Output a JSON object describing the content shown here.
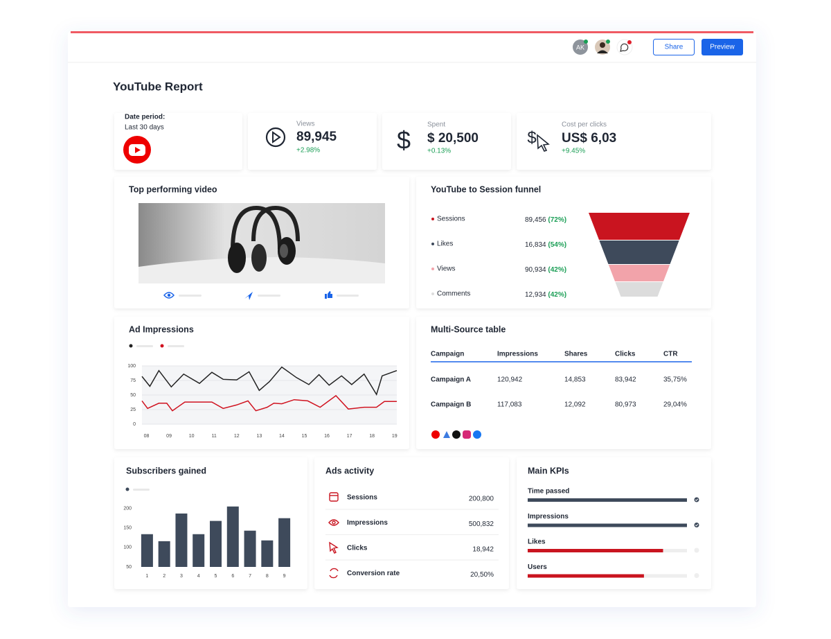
{
  "header": {
    "avatar": "AK",
    "share": "Share",
    "preview": "Preview"
  },
  "title": "YouTube Report",
  "date_period": {
    "label": "Date period:",
    "value": "Last 30 days"
  },
  "kpis": [
    {
      "label": "Views",
      "value": "89,945",
      "change": "+2.98%"
    },
    {
      "label": "Spent",
      "value": "$ 20,500",
      "change": "+0.13%"
    },
    {
      "label": "Cost per clicks",
      "value": "US$ 6,03",
      "change": "+9.45%"
    }
  ],
  "top_video": {
    "title": "Top performing video"
  },
  "funnel": {
    "title": "YouTube to Session funnel",
    "rows": [
      {
        "name": "Sessions",
        "value": "89,456",
        "pct": "(72%)",
        "color": "#c9141f"
      },
      {
        "name": "Likes",
        "value": "16,834",
        "pct": "(54%)",
        "color": "#3e4a5b"
      },
      {
        "name": "Views",
        "value": "90,934",
        "pct": "(42%)",
        "color": "#f2a3aa"
      },
      {
        "name": "Comments",
        "value": "12,934",
        "pct": "(42%)",
        "color": "#dcdcdc"
      }
    ]
  },
  "ad_impressions": {
    "type": "line",
    "title": "Ad Impressions",
    "xlim": [
      7.8,
      19.1
    ],
    "xticks": [
      {
        "value": 8,
        "label": "08"
      },
      {
        "value": 9,
        "label": "09"
      },
      10,
      11,
      12,
      13,
      14,
      15,
      16,
      17,
      18,
      19
    ],
    "ylim": [
      0,
      100
    ],
    "yticks": [
      0,
      25,
      50,
      75,
      100
    ],
    "grid": true,
    "series": [
      {
        "color": "#222222",
        "x": [
          7.8,
          8.15,
          8.55,
          9.1,
          9.65,
          10.35,
          10.9,
          11.4,
          12,
          12.55,
          13,
          13.45,
          14,
          14.65,
          15.2,
          15.65,
          16.1,
          16.65,
          17.1,
          17.65,
          18.2,
          18.45,
          19.1
        ],
        "values": [
          82,
          65,
          92,
          64,
          86,
          70,
          89,
          77,
          76,
          90,
          58,
          73,
          98,
          80,
          68,
          85,
          67,
          83,
          68,
          86,
          51,
          83,
          92
        ]
      },
      {
        "color": "#d0121f",
        "x": [
          7.8,
          8.05,
          8.55,
          8.9,
          9.15,
          9.7,
          10.25,
          10.9,
          11.4,
          12,
          12.5,
          12.85,
          13.35,
          13.65,
          14,
          14.55,
          15.15,
          15.7,
          16.4,
          16.95,
          17.65,
          18.2,
          18.55,
          19.1
        ],
        "values": [
          40,
          27,
          36,
          36,
          23,
          38,
          38,
          38,
          27,
          33,
          40,
          23,
          29,
          36,
          35,
          42,
          40,
          29,
          49,
          26,
          29,
          29,
          39,
          39
        ]
      }
    ]
  },
  "multi_source": {
    "title": "Multi-Source table",
    "columns": [
      "Campaign",
      "Impressions",
      "Shares",
      "Clicks",
      "CTR"
    ],
    "rows": [
      [
        "Campaign A",
        "120,942",
        "14,853",
        "83,942",
        "35,75%"
      ],
      [
        "Campaign B",
        "117,083",
        "12,092",
        "80,973",
        "29,04%"
      ]
    ]
  },
  "subscribers": {
    "type": "bar",
    "title": "Subscribers gained",
    "categories": [
      1,
      2,
      3,
      4,
      5,
      6,
      7,
      8,
      9
    ],
    "values": [
      134,
      116,
      187,
      134,
      168,
      205,
      143,
      118,
      175
    ],
    "color": "#3e4a5b",
    "ylim": [
      50,
      210
    ],
    "yticks": [
      50,
      100,
      150,
      200
    ]
  },
  "ads_activity": {
    "title": "Ads activity",
    "rows": [
      {
        "name": "Sessions",
        "value": "200,800"
      },
      {
        "name": "Impressions",
        "value": "500,832"
      },
      {
        "name": "Clicks",
        "value": "18,942"
      },
      {
        "name": "Conversion rate",
        "value": "20,50%"
      }
    ]
  },
  "main_kpis": {
    "title": "Main KPIs",
    "max": 100,
    "items": [
      {
        "label": "Time passed",
        "value": 100,
        "color": "#3e4a5b",
        "done": true
      },
      {
        "label": "Impressions",
        "value": 100,
        "color": "#3e4a5b",
        "done": true
      },
      {
        "label": "Likes",
        "value": 85,
        "color": "#c9141f",
        "done": false
      },
      {
        "label": "Users",
        "value": 73,
        "color": "#c9141f",
        "done": false
      }
    ]
  }
}
